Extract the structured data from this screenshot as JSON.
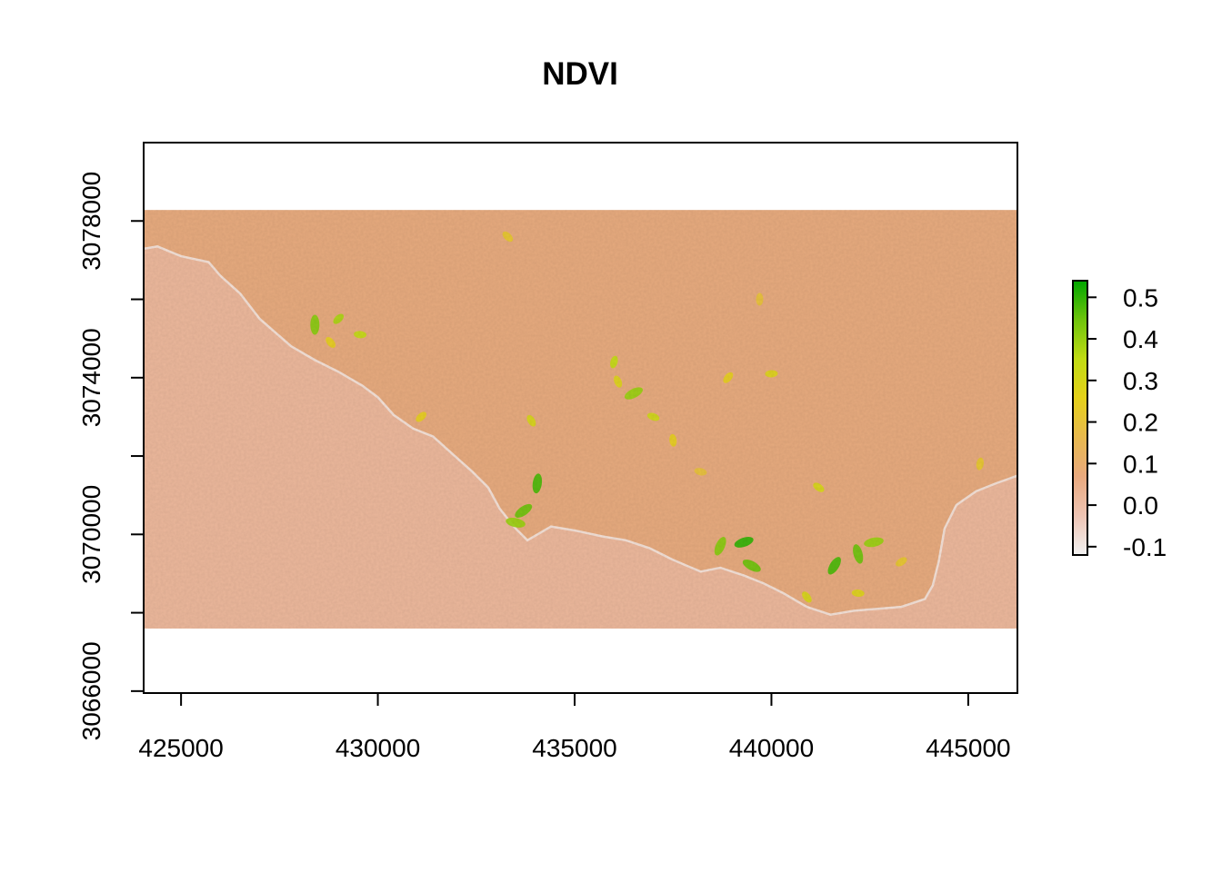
{
  "chart_data": {
    "type": "heatmap",
    "title": "NDVI",
    "xlabel": "",
    "ylabel": "",
    "xlim": [
      424050,
      446250
    ],
    "ylim": [
      3065950,
      3080000
    ],
    "raster_extent": {
      "x": [
        424050,
        446250
      ],
      "y": [
        3067600,
        3078280
      ]
    },
    "x_ticks": [
      425000,
      430000,
      435000,
      440000,
      445000
    ],
    "x_tick_labels": [
      "425000",
      "430000",
      "435000",
      "440000",
      "445000"
    ],
    "y_ticks": [
      3066000,
      3068000,
      3070000,
      3072000,
      3074000,
      3076000,
      3078000
    ],
    "y_tick_labels": [
      "3066000",
      "",
      "3070000",
      "",
      "3074000",
      "",
      "3078000"
    ],
    "grid": false,
    "legend": {
      "placement": "right",
      "range": [
        -0.12,
        0.54
      ],
      "ticks": [
        0.5,
        0.4,
        0.3,
        0.2,
        0.1,
        0.0,
        -0.1
      ],
      "tick_labels": [
        "0.5",
        "0.4",
        "0.3",
        "0.2",
        "0.1",
        "0.0",
        "-0.1"
      ],
      "colors": [
        "#f2f2f2",
        "#eec4b4",
        "#e9a97e",
        "#e8b94e",
        "#e5d11a",
        "#c1dc14",
        "#6fc40c",
        "#00a600"
      ]
    },
    "coastline": [
      [
        424050,
        3077290
      ],
      [
        424400,
        3077350
      ],
      [
        425000,
        3077100
      ],
      [
        425700,
        3076950
      ],
      [
        426000,
        3076600
      ],
      [
        426500,
        3076150
      ],
      [
        427000,
        3075500
      ],
      [
        427400,
        3075150
      ],
      [
        427800,
        3074800
      ],
      [
        428400,
        3074450
      ],
      [
        429000,
        3074150
      ],
      [
        429600,
        3073800
      ],
      [
        430000,
        3073500
      ],
      [
        430400,
        3073050
      ],
      [
        430900,
        3072700
      ],
      [
        431400,
        3072500
      ],
      [
        431900,
        3072050
      ],
      [
        432400,
        3071600
      ],
      [
        432800,
        3071200
      ],
      [
        433100,
        3070650
      ],
      [
        433500,
        3070150
      ],
      [
        433800,
        3069850
      ],
      [
        434400,
        3070200
      ],
      [
        435000,
        3070100
      ],
      [
        435700,
        3069950
      ],
      [
        436300,
        3069850
      ],
      [
        436900,
        3069650
      ],
      [
        437500,
        3069350
      ],
      [
        438200,
        3069050
      ],
      [
        438700,
        3069150
      ],
      [
        439300,
        3068950
      ],
      [
        439800,
        3068750
      ],
      [
        440300,
        3068500
      ],
      [
        440900,
        3068150
      ],
      [
        441500,
        3067950
      ],
      [
        442100,
        3068050
      ],
      [
        442700,
        3068100
      ],
      [
        443300,
        3068150
      ],
      [
        443900,
        3068350
      ],
      [
        444100,
        3068700
      ],
      [
        444250,
        3069300
      ],
      [
        444400,
        3070150
      ],
      [
        444700,
        3070750
      ],
      [
        445200,
        3071100
      ],
      [
        445700,
        3071300
      ],
      [
        446250,
        3071500
      ]
    ],
    "vegetation_patches": [
      {
        "x": 428400,
        "y": 3075350,
        "value": 0.42
      },
      {
        "x": 429000,
        "y": 3075500,
        "value": 0.38
      },
      {
        "x": 429550,
        "y": 3075100,
        "value": 0.35
      },
      {
        "x": 428800,
        "y": 3074900,
        "value": 0.25
      },
      {
        "x": 434050,
        "y": 3071300,
        "value": 0.48
      },
      {
        "x": 433700,
        "y": 3070600,
        "value": 0.45
      },
      {
        "x": 433500,
        "y": 3070300,
        "value": 0.4
      },
      {
        "x": 433900,
        "y": 3072900,
        "value": 0.3
      },
      {
        "x": 436000,
        "y": 3074400,
        "value": 0.35
      },
      {
        "x": 436500,
        "y": 3073600,
        "value": 0.4
      },
      {
        "x": 437000,
        "y": 3073000,
        "value": 0.32
      },
      {
        "x": 436100,
        "y": 3073900,
        "value": 0.28
      },
      {
        "x": 438700,
        "y": 3069700,
        "value": 0.42
      },
      {
        "x": 439300,
        "y": 3069800,
        "value": 0.5
      },
      {
        "x": 439500,
        "y": 3069200,
        "value": 0.45
      },
      {
        "x": 442200,
        "y": 3069500,
        "value": 0.45
      },
      {
        "x": 441600,
        "y": 3069200,
        "value": 0.48
      },
      {
        "x": 442600,
        "y": 3069800,
        "value": 0.4
      },
      {
        "x": 441200,
        "y": 3071200,
        "value": 0.3
      },
      {
        "x": 437500,
        "y": 3072400,
        "value": 0.25
      },
      {
        "x": 438900,
        "y": 3074000,
        "value": 0.25
      },
      {
        "x": 440000,
        "y": 3074100,
        "value": 0.28
      },
      {
        "x": 433300,
        "y": 3077600,
        "value": 0.22
      },
      {
        "x": 439700,
        "y": 3076000,
        "value": 0.2
      },
      {
        "x": 431100,
        "y": 3073000,
        "value": 0.25
      },
      {
        "x": 442200,
        "y": 3068500,
        "value": 0.28
      },
      {
        "x": 440900,
        "y": 3068400,
        "value": 0.3
      },
      {
        "x": 445300,
        "y": 3071800,
        "value": 0.22
      },
      {
        "x": 443300,
        "y": 3069300,
        "value": 0.22
      },
      {
        "x": 438200,
        "y": 3071600,
        "value": 0.2
      }
    ]
  }
}
